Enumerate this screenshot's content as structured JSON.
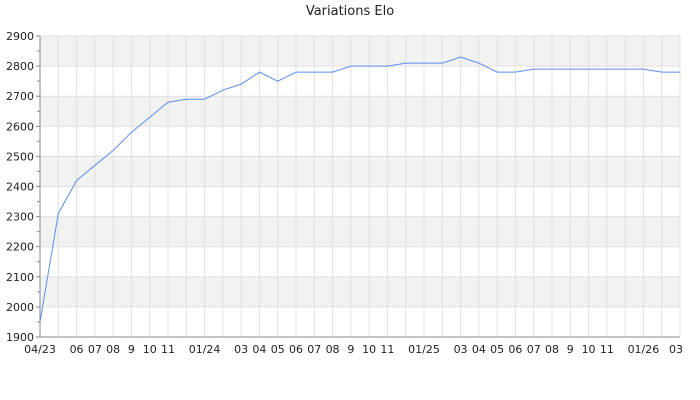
{
  "chart_data": {
    "type": "line",
    "title": "Variations Elo",
    "xlabel": "",
    "ylabel": "",
    "ylim": [
      1900,
      2900
    ],
    "yticks": [
      1900,
      2000,
      2100,
      2200,
      2300,
      2400,
      2500,
      2600,
      2700,
      2800,
      2900
    ],
    "grid": true,
    "colors": {
      "line": "#5b8def",
      "band": "#f2f2f2",
      "grid": "#e0e0e0",
      "axis": "#888888"
    },
    "x_tick_labels": [
      "04/23",
      "",
      "06",
      "07",
      "08",
      "9",
      "10",
      "11",
      "",
      "01/24",
      "",
      "03",
      "04",
      "05",
      "06",
      "07",
      "08",
      "9",
      "10",
      "11",
      "",
      "01/25",
      "",
      "03",
      "04",
      "05",
      "06",
      "07",
      "08",
      "9",
      "10",
      "11",
      "",
      "01/26",
      "",
      "03"
    ],
    "x": [
      "2023-04",
      "2023-05",
      "2023-06",
      "2023-07",
      "2023-08",
      "2023-09",
      "2023-10",
      "2023-11",
      "2023-12",
      "2024-01",
      "2024-02",
      "2024-03",
      "2024-04",
      "2024-05",
      "2024-06",
      "2024-07",
      "2024-08",
      "2024-09",
      "2024-10",
      "2024-11",
      "2024-12",
      "2025-01",
      "2025-02",
      "2025-03",
      "2025-04",
      "2025-05",
      "2025-06",
      "2025-07",
      "2025-08",
      "2025-09",
      "2025-10",
      "2025-11",
      "2025-12",
      "2026-01",
      "2026-02",
      "2026-03"
    ],
    "series": [
      {
        "values": [
          1950,
          2310,
          2420,
          2470,
          2520,
          2580,
          2630,
          2680,
          2690,
          2690,
          2720,
          2740,
          2780,
          2750,
          2780,
          2780,
          2780,
          2800,
          2800,
          2800,
          2810,
          2810,
          2810,
          2830,
          2810,
          2780,
          2780,
          2790,
          2790,
          2790,
          2790,
          2790,
          2790,
          2790,
          2780,
          2780
        ]
      }
    ]
  }
}
